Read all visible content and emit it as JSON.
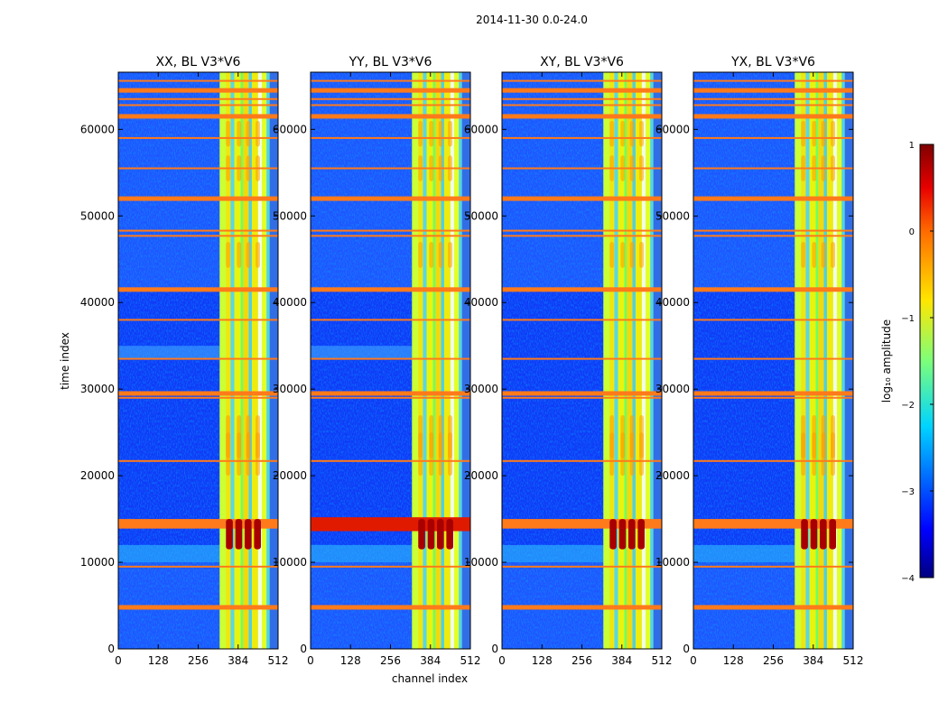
{
  "chart_data": {
    "type": "heatmap",
    "suptitle": "2014-11-30 0.0-24.0",
    "panels": [
      {
        "title": "XX, BL V3*V6",
        "name": "xx"
      },
      {
        "title": "YY, BL V3*V6",
        "name": "yy"
      },
      {
        "title": "XY, BL V3*V6",
        "name": "xy"
      },
      {
        "title": "YX, BL V3*V6",
        "name": "yx"
      }
    ],
    "xlabel": "channel index",
    "ylabel": "time index",
    "xlim": [
      0,
      512
    ],
    "ylim": [
      0,
      66600
    ],
    "xticks": [
      0,
      128,
      256,
      384,
      512
    ],
    "xtick_labels": [
      "0",
      "128",
      "256",
      "384",
      "512"
    ],
    "yticks": [
      0,
      10000,
      20000,
      30000,
      40000,
      50000,
      60000
    ],
    "ytick_labels": [
      "0",
      "10000",
      "20000",
      "30000",
      "40000",
      "50000",
      "60000"
    ],
    "colorbar": {
      "label": "log₁₀ amplitude",
      "range": [
        -4,
        1
      ],
      "ticks": [
        1,
        0,
        -1,
        -2,
        -3,
        -4
      ],
      "tick_labels": [
        "1",
        "0",
        "−1",
        "−2",
        "−3",
        "−4"
      ]
    },
    "strong_channel_range": [
      325,
      512
    ],
    "rfi_time_bands": [
      4800,
      9500,
      14000,
      14600,
      21700,
      29000,
      29500,
      33500,
      38000,
      41500,
      47700,
      48300,
      52000,
      55500,
      59000,
      61500,
      62800,
      63500,
      64500,
      65600
    ]
  }
}
